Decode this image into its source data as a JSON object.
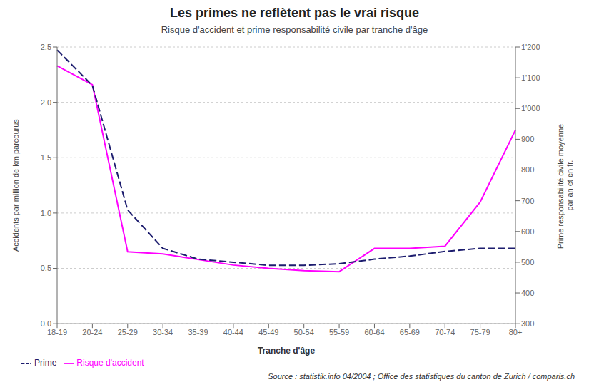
{
  "chart_data": {
    "type": "line",
    "title": "Les primes ne reflètent pas le vrai risque",
    "subtitle": "Risque d'accident et prime responsabilité civile par tranche d'âge",
    "xlabel": "Tranche d'âge",
    "ylabel": "Accidents par million de km parcourus",
    "y2label": "Prime responsabilité civile moyenne,\npar an et en fr.",
    "source": "Source : statistik.info 04/2004 ; Office des statistiques du canton de Zurich / comparis.ch",
    "categories": [
      "18-19",
      "20-24",
      "25-29",
      "30-34",
      "35-39",
      "40-44",
      "45-49",
      "50-54",
      "55-59",
      "60-64",
      "65-69",
      "70-74",
      "75-79",
      "80+"
    ],
    "series": [
      {
        "name": "Risque d'accident",
        "color": "#FF00FF",
        "line_style": "solid",
        "values": [
          2.33,
          2.16,
          0.65,
          0.63,
          0.58,
          0.53,
          0.5,
          0.48,
          0.47,
          0.68,
          0.68,
          0.7,
          1.1,
          1.75
        ]
      },
      {
        "name": "Prime",
        "color": "#1C1C6E",
        "line_style": "dashed",
        "axis": "y2",
        "values": [
          1190,
          1075,
          670,
          545,
          510,
          500,
          490,
          490,
          495,
          510,
          520,
          535,
          545,
          545
        ]
      }
    ],
    "ylim": [
      0.0,
      2.5
    ],
    "yticks": [
      {
        "value": 0.0,
        "label": "0.0"
      },
      0.5,
      {
        "value": 1.0,
        "label": "1.0"
      },
      1.5,
      {
        "value": 2.0,
        "label": "2.0"
      },
      2.5
    ],
    "y2lim": [
      300,
      1200
    ],
    "y2ticks": [
      300,
      400,
      500,
      600,
      700,
      800,
      900,
      {
        "value": 1000,
        "label": "1'000"
      },
      {
        "value": 1100,
        "label": "1'100"
      },
      {
        "value": 1200,
        "label": "1'200"
      }
    ],
    "grid": true,
    "legend": "lower left"
  }
}
